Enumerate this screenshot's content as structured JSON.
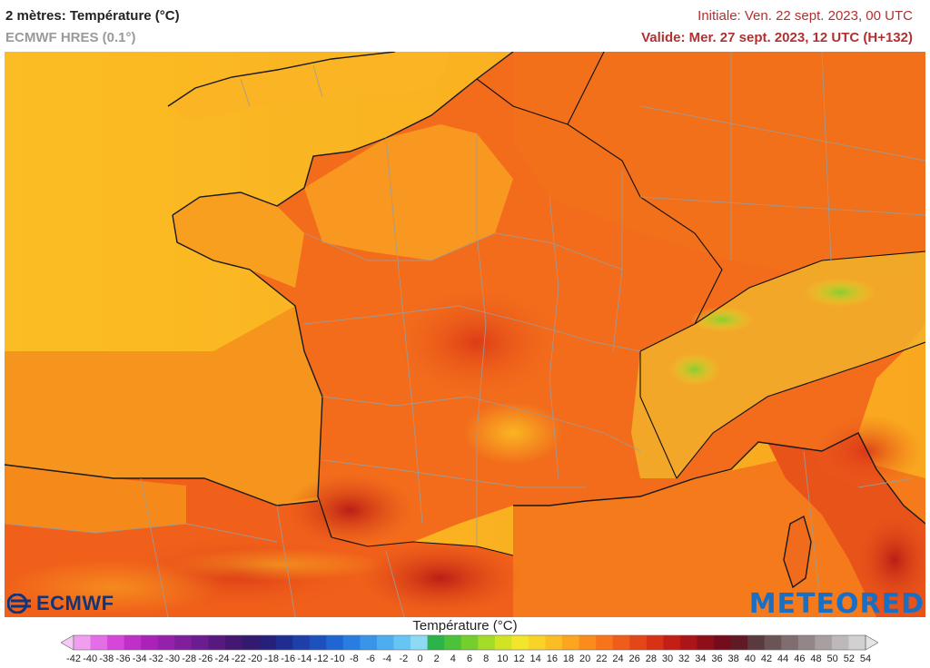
{
  "header": {
    "title": "2 mètres: Température (°C)",
    "model": "ECMWF HRES (0.1°)",
    "initial": "Initiale: Ven. 22 sept. 2023, 00 UTC",
    "valid": "Valide: Mer. 27 sept. 2023, 12 UTC (H+132)"
  },
  "logos": {
    "left": "ECMWF",
    "right": "METEORED"
  },
  "legend": {
    "title": "Température (°C)",
    "ticks": [
      "-42",
      "-40",
      "-38",
      "-36",
      "-34",
      "-32",
      "-30",
      "-28",
      "-26",
      "-24",
      "-22",
      "-20",
      "-18",
      "-16",
      "-14",
      "-12",
      "-10",
      "-8",
      "-6",
      "-4",
      "-2",
      "0",
      "2",
      "4",
      "6",
      "8",
      "10",
      "12",
      "14",
      "16",
      "18",
      "20",
      "22",
      "24",
      "26",
      "28",
      "30",
      "32",
      "34",
      "36",
      "38",
      "40",
      "42",
      "44",
      "46",
      "48",
      "50",
      "52",
      "54"
    ],
    "colors": [
      "#f7c8f5",
      "#ef9ef0",
      "#e46ee6",
      "#d447d8",
      "#c02fc8",
      "#aa22b9",
      "#9420ab",
      "#7f1f9c",
      "#6b1c8e",
      "#58197f",
      "#441770",
      "#331a6f",
      "#26207a",
      "#1e2d8f",
      "#1d3fa7",
      "#1d52be",
      "#1f66d3",
      "#2a7de0",
      "#3895e8",
      "#4caeef",
      "#66c5f3",
      "#8edaf5",
      "#2cb34a",
      "#4cc23a",
      "#74cf2e",
      "#a4dc28",
      "#d1e424",
      "#f3e52a",
      "#f9d428",
      "#fbbd23",
      "#fca51f",
      "#fb8c1c",
      "#f7741b",
      "#f05c19",
      "#e54617",
      "#d73216",
      "#c41f16",
      "#ab1418",
      "#8e0f1a",
      "#730d1d",
      "#5f1a24",
      "#5a3a3f",
      "#6b5456",
      "#7f6d6f",
      "#938688",
      "#a89fa0",
      "#bdb8b9",
      "#d2d0d0",
      "#e4e4e4"
    ]
  },
  "map": {
    "description_colors": {
      "sea_west": "#f9b01c",
      "sea_south": "#f7741b",
      "land_main": "#f27a1c",
      "hot": "#c41f16",
      "alps_peak": "#a4dc28"
    }
  }
}
